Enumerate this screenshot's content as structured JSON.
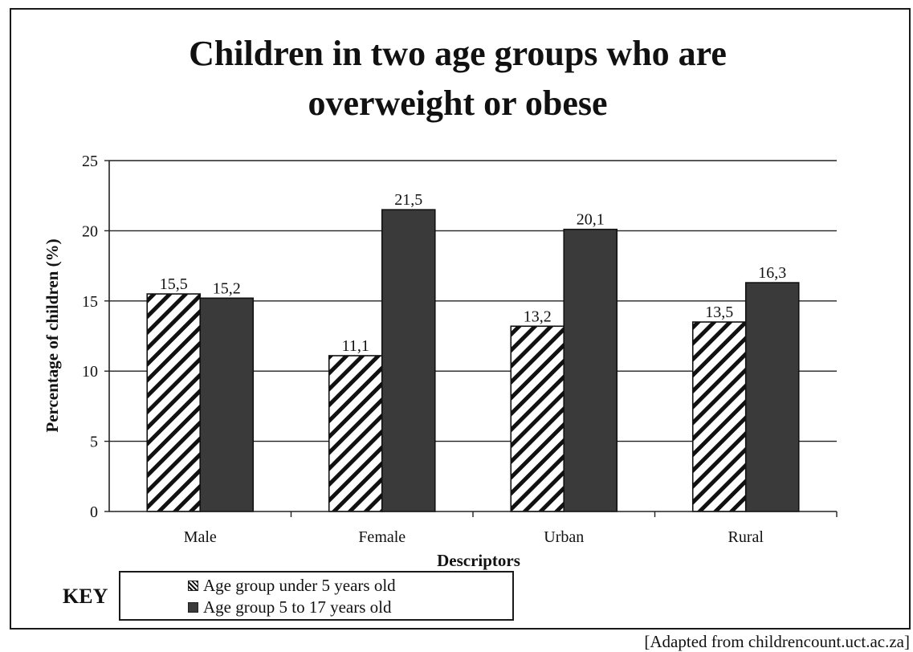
{
  "chart_data": {
    "type": "bar",
    "title_lines": [
      "Children in two age groups who are",
      "overweight or obese"
    ],
    "categories": [
      "Male",
      "Female",
      "Urban",
      "Rural"
    ],
    "series": [
      {
        "name": "Age group under 5 years old",
        "values": [
          15.5,
          11.1,
          13.2,
          13.5
        ],
        "value_labels": [
          "15,5",
          "11,1",
          "13,2",
          "13,5"
        ],
        "fill": "hatched"
      },
      {
        "name": "Age group 5 to 17 years old",
        "values": [
          15.2,
          21.5,
          20.1,
          16.3
        ],
        "value_labels": [
          "15,2",
          "21,5",
          "20,1",
          "16,3"
        ],
        "fill": "dark"
      }
    ],
    "xlabel": "Descriptors",
    "ylabel": "Percentage of children (%)",
    "ylim": [
      0,
      25
    ],
    "yticks": [
      0,
      5,
      10,
      15,
      20,
      25
    ],
    "grid": true,
    "legend_position": "bottom-left",
    "colors": {
      "dark_series": "#3a3a3a",
      "hatch_line": "#111111",
      "grid": "#222222"
    }
  },
  "key_label": "KEY",
  "source": "[Adapted from childrencount.uct.ac.za]"
}
